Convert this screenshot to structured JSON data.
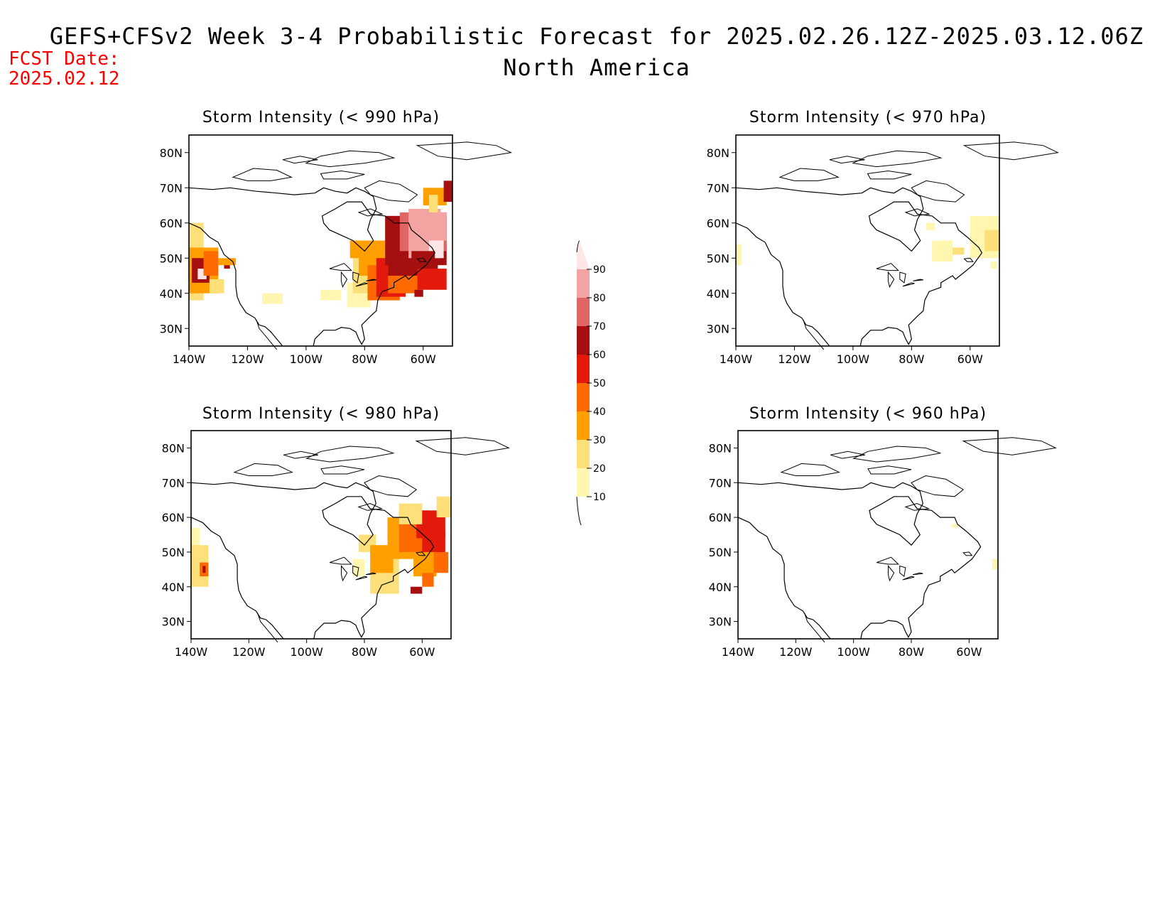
{
  "header": {
    "title_line1": "GEFS+CFSv2 Week 3-4 Probabilistic Forecast for 2025.02.26.12Z-2025.03.12.06Z",
    "title_line2": "North America",
    "fcst_label": "FCST Date:",
    "fcst_date": "2025.02.12"
  },
  "axes": {
    "lat_labels": [
      "80N",
      "70N",
      "60N",
      "50N",
      "40N",
      "30N"
    ],
    "lon_labels": [
      "140W",
      "120W",
      "100W",
      "80W",
      "60W"
    ]
  },
  "panels": [
    {
      "id": "p990",
      "title": "Storm Intensity (< 990 hPa)",
      "threshold_hpa": 990,
      "coverage": "extensive"
    },
    {
      "id": "p970",
      "title": "Storm Intensity (< 970 hPa)",
      "threshold_hpa": 970,
      "coverage": "light"
    },
    {
      "id": "p980",
      "title": "Storm Intensity (< 980 hPa)",
      "threshold_hpa": 980,
      "coverage": "moderate"
    },
    {
      "id": "p960",
      "title": "Storm Intensity (< 960 hPa)",
      "threshold_hpa": 960,
      "coverage": "minimal"
    }
  ],
  "colorbar": {
    "labels": [
      "90",
      "80",
      "70",
      "60",
      "50",
      "40",
      "30",
      "20",
      "10"
    ],
    "colors": [
      "#fde6e6",
      "#f4a3a3",
      "#e06666",
      "#a50f0f",
      "#e31a0b",
      "#ff6a00",
      "#ffa000",
      "#fde07a",
      "#fff6b0"
    ]
  }
}
